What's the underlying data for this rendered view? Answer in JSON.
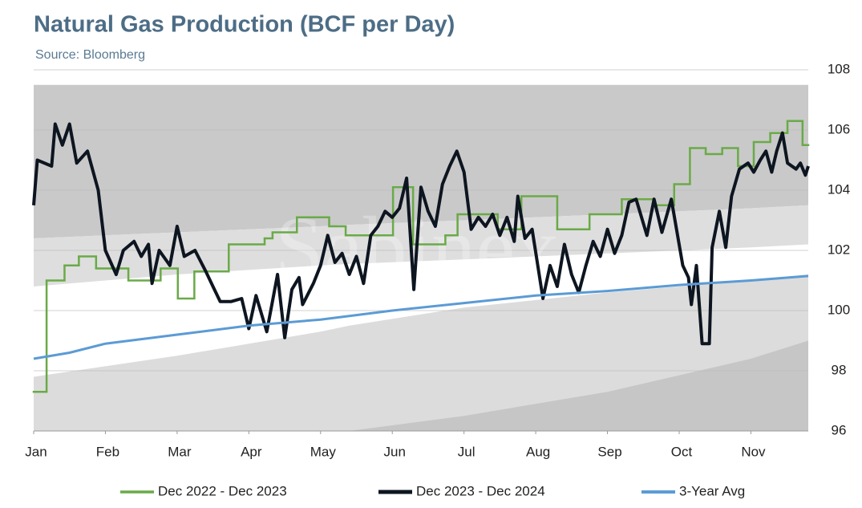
{
  "chart_data": {
    "type": "line",
    "title": "Natural Gas Production (BCF per Day)",
    "subtitle": "Source: Bloomberg",
    "watermark": "Sabinex",
    "xlim": [
      0,
      10.8
    ],
    "xticks": [
      {
        "value": 0,
        "label": "Jan"
      },
      {
        "value": 1,
        "label": "Feb"
      },
      {
        "value": 2,
        "label": "Mar"
      },
      {
        "value": 3,
        "label": "Apr"
      },
      {
        "value": 4,
        "label": "May"
      },
      {
        "value": 5,
        "label": "Jun"
      },
      {
        "value": 6,
        "label": "Jul"
      },
      {
        "value": 7,
        "label": "Aug"
      },
      {
        "value": 8,
        "label": "Sep"
      },
      {
        "value": 9,
        "label": "Oct"
      },
      {
        "value": 10,
        "label": "Nov"
      }
    ],
    "ylim": [
      96,
      108
    ],
    "yticks": [
      96,
      98,
      100,
      102,
      104,
      106,
      108
    ],
    "grid": true,
    "legend": "bottom",
    "bands": [
      {
        "color": "#c9c9c9",
        "x": [
          0,
          2,
          4,
          4.4,
          6,
          8,
          10,
          10.8
        ],
        "upper": [
          107.5,
          107.5,
          107.5,
          107.5,
          107.5,
          107.5,
          107.5,
          107.5
        ],
        "lower": [
          102.4,
          102.6,
          102.8,
          102.85,
          103.0,
          103.2,
          103.4,
          103.5
        ]
      },
      {
        "color": "#dedede",
        "x": [
          0,
          2,
          4,
          4.4,
          6,
          8,
          10,
          10.8
        ],
        "upper": [
          102.4,
          102.6,
          102.8,
          102.85,
          103.0,
          103.2,
          103.4,
          103.5
        ],
        "lower": [
          100.8,
          101.2,
          101.5,
          101.55,
          101.7,
          101.9,
          102.1,
          102.2
        ]
      },
      {
        "color": "#dcdcdc",
        "x": [
          0,
          2,
          4,
          4.4,
          6,
          8,
          10,
          10.8
        ],
        "upper": [
          97.8,
          98.5,
          99.3,
          99.5,
          100.1,
          100.6,
          101.0,
          101.2
        ],
        "lower": [
          96,
          96,
          96,
          96,
          96,
          96,
          96,
          96
        ]
      },
      {
        "color": "#c6c6c6",
        "x": [
          0,
          2,
          4,
          4.4,
          6,
          8,
          10,
          10.8
        ],
        "upper": [
          96,
          96,
          96,
          96,
          96.5,
          97.3,
          98.4,
          99.0
        ],
        "lower": [
          96,
          96,
          96,
          96,
          96,
          96,
          96,
          96
        ]
      }
    ],
    "series": [
      {
        "name": "Dec 2022 - Dec 2023",
        "color": "#6aaa48",
        "step": true,
        "x": [
          0,
          0.18,
          0.43,
          0.63,
          0.87,
          1.32,
          1.77,
          2.01,
          2.24,
          2.72,
          3.22,
          3.33,
          3.67,
          4.12,
          4.35,
          5.01,
          5.29,
          5.74,
          5.91,
          6.47,
          6.8,
          7.3,
          7.75,
          8.2,
          8.65,
          8.93,
          9.15,
          9.37,
          9.6,
          9.82,
          10.04,
          10.27,
          10.51,
          10.72
        ],
        "values": [
          97.3,
          101.0,
          101.5,
          101.8,
          101.4,
          101.0,
          101.4,
          100.4,
          101.3,
          102.2,
          102.4,
          102.6,
          103.1,
          102.8,
          102.5,
          104.1,
          102.2,
          102.5,
          103.2,
          102.7,
          103.8,
          102.7,
          103.2,
          103.7,
          103.5,
          104.2,
          105.4,
          105.2,
          105.4,
          104.8,
          105.6,
          105.9,
          106.3,
          105.5
        ]
      },
      {
        "name": "Dec 2023 - Dec 2024",
        "color": "#0d1520",
        "x": [
          0,
          0.05,
          0.25,
          0.3,
          0.4,
          0.5,
          0.6,
          0.75,
          0.9,
          1.0,
          1.15,
          1.25,
          1.4,
          1.5,
          1.6,
          1.65,
          1.75,
          1.9,
          2.0,
          2.1,
          2.25,
          2.4,
          2.5,
          2.6,
          2.75,
          2.9,
          3.0,
          3.1,
          3.25,
          3.4,
          3.5,
          3.6,
          3.7,
          3.75,
          3.9,
          4.0,
          4.1,
          4.2,
          4.3,
          4.4,
          4.5,
          4.6,
          4.7,
          4.8,
          4.9,
          5.0,
          5.1,
          5.2,
          5.3,
          5.4,
          5.5,
          5.6,
          5.7,
          5.8,
          5.9,
          6.0,
          6.1,
          6.2,
          6.3,
          6.4,
          6.5,
          6.6,
          6.7,
          6.75,
          6.85,
          6.95,
          7.1,
          7.2,
          7.3,
          7.4,
          7.5,
          7.6,
          7.7,
          7.8,
          7.9,
          8.0,
          8.1,
          8.2,
          8.3,
          8.4,
          8.55,
          8.65,
          8.76,
          8.89,
          9.05,
          9.13,
          9.17,
          9.24,
          9.32,
          9.42,
          9.46,
          9.56,
          9.65,
          9.73,
          9.84,
          9.96,
          10.04,
          10.13,
          10.21,
          10.29,
          10.36,
          10.44,
          10.51,
          10.63,
          10.69,
          10.76,
          10.8
        ],
        "values": [
          103.5,
          105.0,
          104.8,
          106.2,
          105.5,
          106.2,
          104.9,
          105.3,
          104.0,
          102.0,
          101.2,
          102.0,
          102.3,
          101.8,
          102.2,
          100.9,
          102.0,
          101.5,
          102.8,
          101.8,
          102.0,
          101.3,
          100.8,
          100.3,
          100.3,
          100.4,
          99.4,
          100.5,
          99.3,
          101.2,
          99.1,
          100.7,
          101.1,
          100.2,
          100.9,
          101.5,
          102.5,
          101.6,
          101.9,
          101.2,
          101.8,
          100.9,
          102.5,
          102.8,
          103.3,
          103.1,
          103.4,
          104.4,
          100.7,
          104.1,
          103.3,
          102.8,
          104.2,
          104.8,
          105.3,
          104.6,
          102.7,
          103.1,
          102.8,
          103.2,
          102.5,
          103.1,
          102.3,
          103.8,
          102.4,
          102.7,
          100.4,
          101.5,
          100.8,
          102.2,
          101.2,
          100.6,
          101.5,
          102.3,
          101.8,
          102.7,
          101.9,
          102.5,
          103.6,
          103.7,
          102.5,
          103.7,
          102.6,
          103.7,
          101.5,
          101.1,
          100.2,
          101.5,
          98.9,
          98.9,
          102.1,
          103.3,
          102.1,
          103.8,
          104.7,
          104.9,
          104.6,
          105.0,
          105.3,
          104.6,
          105.3,
          105.9,
          104.9,
          104.7,
          104.9,
          104.5,
          104.8
        ]
      },
      {
        "name": "3-Year Avg",
        "color": "#5b9bd5",
        "x": [
          0,
          0.5,
          1.0,
          2.0,
          3.0,
          4.0,
          5.0,
          6.0,
          7.0,
          8.0,
          9.0,
          10.0,
          10.8
        ],
        "values": [
          98.4,
          98.6,
          98.9,
          99.2,
          99.5,
          99.7,
          100.0,
          100.25,
          100.5,
          100.65,
          100.85,
          101.0,
          101.15
        ]
      }
    ]
  }
}
